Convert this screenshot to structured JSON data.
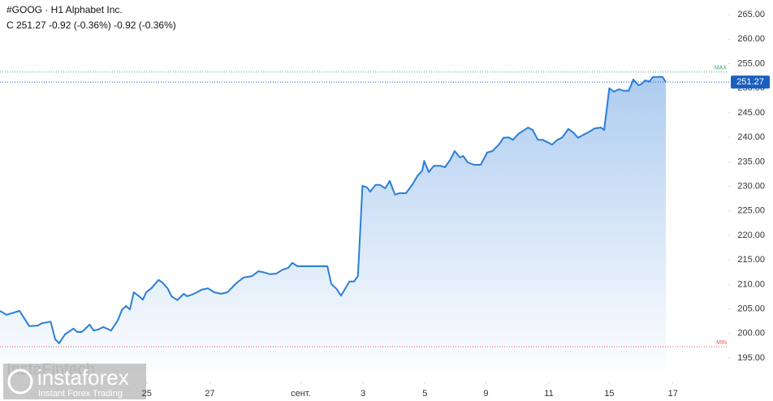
{
  "chart_data": {
    "type": "area",
    "title": "#GOOG · H1 Alphabet Inc.",
    "subtitle": "C 251.27 -0.92 (-0.36%) -0.92 (-0.36%)",
    "watermark": {
      "brand": "instaforex",
      "tagline": "Instant Forex Trading",
      "faint": "InstaFintech"
    },
    "x": [
      0,
      1,
      3,
      4.5,
      5.8,
      6.5,
      7.8,
      8.5,
      9.1,
      10,
      11.3,
      11.9,
      12.6,
      13.8,
      14.4,
      15.1,
      15.9,
      17.1,
      18.1,
      18.8,
      19.4,
      20,
      20.6,
      21.3,
      22,
      22.5,
      23.3,
      24.4,
      25,
      25.8,
      26.4,
      27.3,
      28.3,
      28.8,
      29.5,
      30.3,
      31,
      32,
      33,
      34,
      35,
      36.5,
      37.5,
      38.8,
      39.8,
      40.8,
      41.5,
      42.5,
      43.5,
      44.4,
      45,
      45.8,
      50.4,
      51,
      51.8,
      52.5,
      53.8,
      54.5,
      55.1,
      55.8,
      56.5,
      57,
      57.8,
      58.5,
      59.3,
      60,
      60.8,
      61.5,
      62.5,
      63.5,
      64.3,
      65,
      65.3,
      66,
      66.8,
      67.8,
      68.5,
      69.3,
      70,
      70.8,
      71.3,
      72,
      73,
      74,
      75,
      75.8,
      76.8,
      77.5,
      78.3,
      79,
      79.8,
      80.5,
      81.3,
      82,
      82.8,
      83.5,
      84.3,
      85,
      85.8,
      86.5,
      87.5,
      88.3,
      89,
      89.8,
      90.8,
      91.5,
      92.5,
      93,
      93.8,
      94.5,
      95.3,
      96,
      96.8,
      97.5,
      98.3,
      98.8,
      99.3,
      100,
      100.5,
      101.3,
      102,
      102.5
    ],
    "series": [
      {
        "name": "#GOOG",
        "color": "#2a7fd8",
        "values": [
          204.6,
          203.8,
          204.6,
          201.5,
          201.6,
          202.1,
          202.4,
          198.8,
          198.0,
          199.8,
          201.0,
          200.3,
          200.3,
          201.8,
          200.6,
          200.8,
          201.3,
          200.6,
          202.6,
          204.9,
          205.6,
          204.9,
          208.4,
          207.7,
          206.9,
          208.4,
          209.2,
          210.9,
          210.4,
          209.2,
          207.6,
          206.8,
          208.1,
          207.6,
          207.9,
          208.4,
          208.9,
          209.2,
          208.4,
          208.1,
          208.4,
          210.4,
          211.4,
          211.7,
          212.7,
          212.4,
          212.1,
          212.2,
          213.0,
          213.4,
          214.4,
          213.7,
          213.7,
          210.1,
          209.1,
          207.7,
          210.6,
          210.6,
          211.7,
          230.1,
          229.8,
          228.9,
          230.3,
          230.3,
          229.6,
          231.1,
          228.3,
          228.6,
          228.6,
          230.4,
          232.2,
          233.2,
          235.2,
          232.9,
          234.2,
          234.2,
          233.9,
          235.4,
          237.2,
          235.9,
          236.2,
          234.9,
          234.4,
          234.4,
          236.9,
          237.2,
          238.5,
          239.9,
          240.0,
          239.5,
          240.7,
          241.3,
          242.0,
          241.5,
          239.5,
          239.5,
          239.0,
          238.5,
          239.5,
          239.9,
          241.7,
          240.9,
          239.9,
          240.5,
          241.2,
          241.8,
          242.0,
          241.5,
          250.0,
          249.3,
          249.8,
          249.5,
          249.5,
          251.8,
          250.6,
          250.9,
          251.6,
          251.4,
          252.3,
          252.3,
          252.3,
          251.27
        ]
      }
    ],
    "xlim": [
      0,
      112
    ],
    "xticks": [
      {
        "value": 22.6,
        "label": "25"
      },
      {
        "value": 32.3,
        "label": "27"
      },
      {
        "value": 46.3,
        "label": "сент."
      },
      {
        "value": 55.9,
        "label": "3"
      },
      {
        "value": 65.4,
        "label": "5"
      },
      {
        "value": 74.8,
        "label": "9"
      },
      {
        "value": 84.5,
        "label": "11"
      },
      {
        "value": 93.8,
        "label": "15"
      },
      {
        "value": 103.6,
        "label": "17"
      }
    ],
    "ylim": [
      190.2,
      268
    ],
    "yticks": [
      {
        "value": 195,
        "label": "195.00"
      },
      {
        "value": 200,
        "label": "200.00"
      },
      {
        "value": 205,
        "label": "205.00"
      },
      {
        "value": 210,
        "label": "210.00"
      },
      {
        "value": 215,
        "label": "215.00"
      },
      {
        "value": 220,
        "label": "220.00"
      },
      {
        "value": 225,
        "label": "225.00"
      },
      {
        "value": 230,
        "label": "230.00"
      },
      {
        "value": 235,
        "label": "235.00"
      },
      {
        "value": 240,
        "label": "240.00"
      },
      {
        "value": 245,
        "label": "245.00"
      },
      {
        "value": 250,
        "label": "250.00"
      },
      {
        "value": 255,
        "label": "255.00"
      },
      {
        "value": 260,
        "label": "260.00"
      },
      {
        "value": 265,
        "label": "265.00"
      }
    ],
    "levels": [
      {
        "label": "MAX",
        "value": 253.3,
        "color": "#3aa86b"
      },
      {
        "label": "MIN",
        "value": 197.3,
        "color": "#e05a5a"
      }
    ],
    "price_line_color": "#1a5fc0",
    "grid": false
  }
}
